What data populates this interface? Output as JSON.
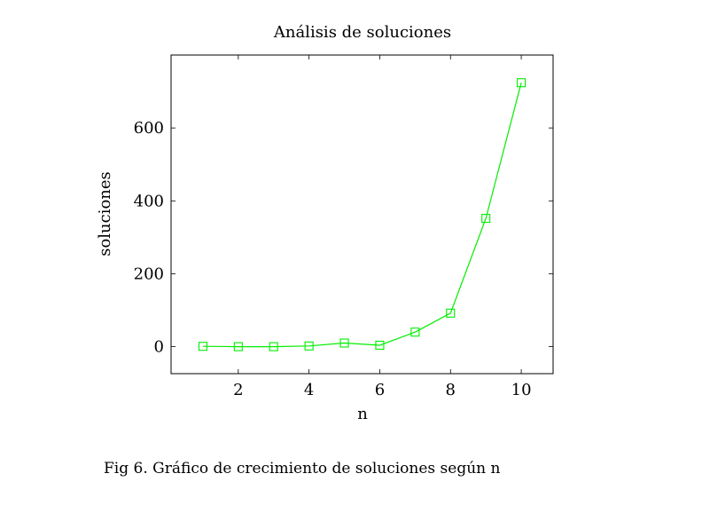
{
  "chart_data": {
    "type": "line",
    "title": "Análisis de soluciones",
    "xlabel": "n",
    "ylabel": "soluciones",
    "x": [
      1,
      2,
      3,
      4,
      5,
      6,
      7,
      8,
      9,
      10
    ],
    "series": [
      {
        "values": [
          1,
          0,
          0,
          2,
          10,
          4,
          40,
          92,
          352,
          724
        ],
        "color": "#00ee00",
        "marker": "square"
      }
    ],
    "xlim": [
      0.1,
      10.9
    ],
    "ylim": [
      -74,
      800
    ],
    "xticks": [
      2,
      4,
      6,
      8,
      10
    ],
    "yticks": [
      0,
      200,
      400,
      600
    ],
    "grid": false,
    "legend": "none"
  },
  "caption": "Fig 6.  Gráfico de crecimiento de soluciones según n"
}
